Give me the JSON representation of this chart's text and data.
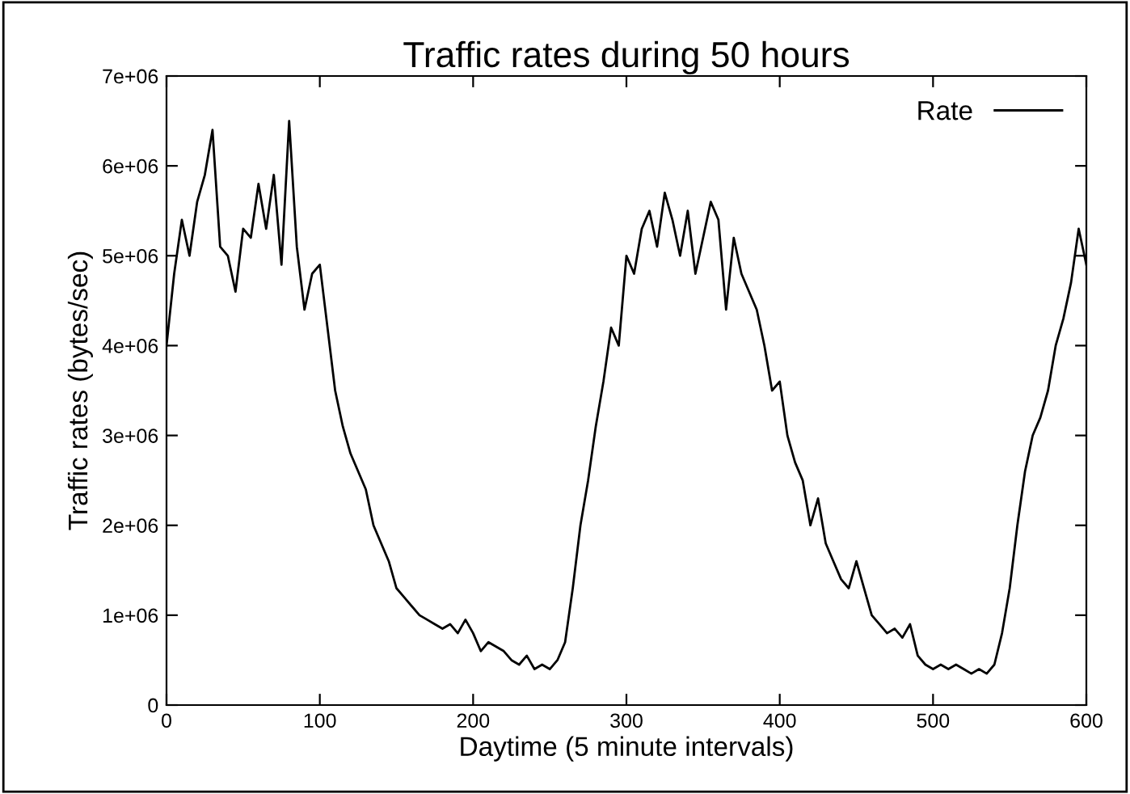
{
  "chart_data": {
    "type": "line",
    "title": "Traffic rates during 50 hours",
    "xlabel": "Daytime (5 minute intervals)",
    "ylabel": "Traffic rates (bytes/sec)",
    "x": [
      0,
      5,
      10,
      15,
      20,
      25,
      30,
      35,
      40,
      45,
      50,
      55,
      60,
      65,
      70,
      75,
      80,
      85,
      90,
      95,
      100,
      105,
      110,
      115,
      120,
      125,
      130,
      135,
      140,
      145,
      150,
      155,
      160,
      165,
      170,
      175,
      180,
      185,
      190,
      195,
      200,
      205,
      210,
      215,
      220,
      225,
      230,
      235,
      240,
      245,
      250,
      255,
      260,
      265,
      270,
      275,
      280,
      285,
      290,
      295,
      300,
      305,
      310,
      315,
      320,
      325,
      330,
      335,
      340,
      345,
      350,
      355,
      360,
      365,
      370,
      375,
      380,
      385,
      390,
      395,
      400,
      405,
      410,
      415,
      420,
      425,
      430,
      435,
      440,
      445,
      450,
      455,
      460,
      465,
      470,
      475,
      480,
      485,
      490,
      495,
      500,
      505,
      510,
      515,
      520,
      525,
      530,
      535,
      540,
      545,
      550,
      555,
      560,
      565,
      570,
      575,
      580,
      585,
      590,
      595,
      600
    ],
    "series": [
      {
        "name": "Rate",
        "color": "#000000",
        "values": [
          4000000,
          4800000,
          5400000,
          5000000,
          5600000,
          5900000,
          6400000,
          5100000,
          5000000,
          4600000,
          5300000,
          5200000,
          5800000,
          5300000,
          5900000,
          4900000,
          6500000,
          5100000,
          4400000,
          4800000,
          4900000,
          4200000,
          3500000,
          3100000,
          2800000,
          2600000,
          2400000,
          2000000,
          1800000,
          1600000,
          1300000,
          1200000,
          1100000,
          1000000,
          950000,
          900000,
          850000,
          900000,
          800000,
          950000,
          800000,
          600000,
          700000,
          650000,
          600000,
          500000,
          450000,
          550000,
          400000,
          450000,
          400000,
          500000,
          700000,
          1300000,
          2000000,
          2500000,
          3100000,
          3600000,
          4200000,
          4000000,
          5000000,
          4800000,
          5300000,
          5500000,
          5100000,
          5700000,
          5400000,
          5000000,
          5500000,
          4800000,
          5200000,
          5600000,
          5400000,
          4400000,
          5200000,
          4800000,
          4600000,
          4400000,
          4000000,
          3500000,
          3600000,
          3000000,
          2700000,
          2500000,
          2000000,
          2300000,
          1800000,
          1600000,
          1400000,
          1300000,
          1600000,
          1300000,
          1000000,
          900000,
          800000,
          850000,
          750000,
          900000,
          550000,
          450000,
          400000,
          450000,
          400000,
          450000,
          400000,
          350000,
          400000,
          350000,
          450000,
          800000,
          1300000,
          2000000,
          2600000,
          3000000,
          3200000,
          3500000,
          4000000,
          4300000,
          4700000,
          5300000,
          4900000
        ]
      }
    ],
    "xlim": [
      0,
      600
    ],
    "xticks": [
      0,
      100,
      200,
      300,
      400,
      500,
      600
    ],
    "ylim": [
      0,
      7000000
    ],
    "yticks": [
      {
        "value": 0,
        "label": "0"
      },
      {
        "value": 1000000,
        "label": "1e+06"
      },
      {
        "value": 2000000,
        "label": "2e+06"
      },
      {
        "value": 3000000,
        "label": "3e+06"
      },
      {
        "value": 4000000,
        "label": "4e+06"
      },
      {
        "value": 5000000,
        "label": "5e+06"
      },
      {
        "value": 6000000,
        "label": "6e+06"
      },
      {
        "value": 7000000,
        "label": "7e+06"
      }
    ],
    "grid": false,
    "legend": "top right"
  }
}
